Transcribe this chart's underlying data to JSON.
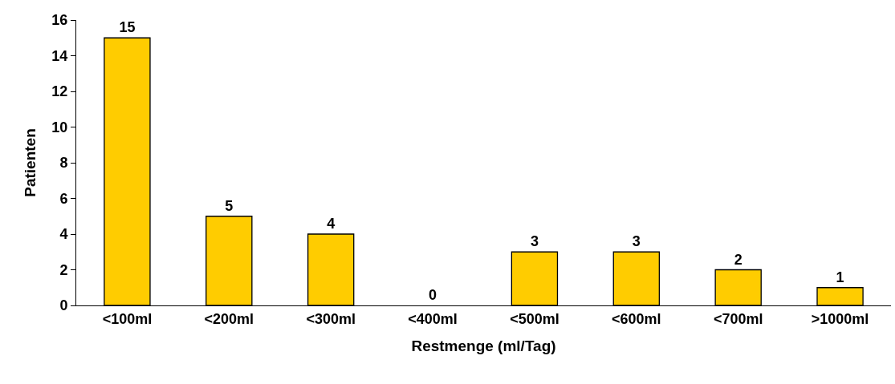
{
  "chart_data": {
    "type": "bar",
    "xlabel": "Restmenge (ml/Tag)",
    "ylabel": "Patienten",
    "categories": [
      "<100ml",
      "<200ml",
      "<300ml",
      "<400ml",
      "<500ml",
      "<600ml",
      "<700ml",
      ">1000ml"
    ],
    "values": [
      15,
      5,
      4,
      0,
      3,
      3,
      2,
      1
    ],
    "color": "#ffcc00",
    "ylim": [
      0,
      16
    ],
    "yticks": [
      0,
      2,
      4,
      6,
      8,
      10,
      12,
      14,
      16
    ],
    "grid": false,
    "data_labels": true
  }
}
